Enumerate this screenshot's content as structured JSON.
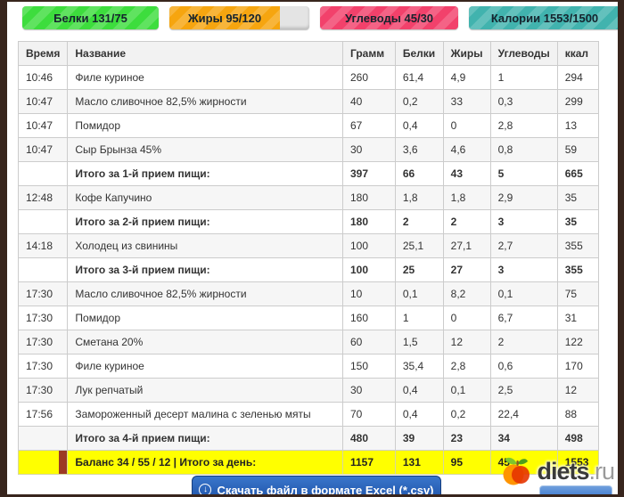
{
  "summary_badges": [
    {
      "name": "proteins",
      "label": "Белки 131/75",
      "color": "#3ddd3d",
      "fill_percent": 100
    },
    {
      "name": "fats",
      "label": "Жиры 95/120",
      "color": "#f6a50f",
      "fill_percent": 79
    },
    {
      "name": "carbs",
      "label": "Углеводы 45/30",
      "color": "#f2416b",
      "fill_percent": 100
    },
    {
      "name": "calories",
      "label": "Калории 1553/1500",
      "color": "#41b3ae",
      "fill_percent": 100
    }
  ],
  "table": {
    "headers": [
      "Время",
      "Название",
      "Грамм",
      "Белки",
      "Жиры",
      "Углеводы",
      "ккал"
    ],
    "rows": [
      {
        "type": "item",
        "time": "10:46",
        "name": "Филе куриное",
        "gram": "260",
        "protein": "61,4",
        "fat": "4,9",
        "carb": "1",
        "kcal": "294"
      },
      {
        "type": "item",
        "time": "10:47",
        "name": "Масло сливочное 82,5% жирности",
        "gram": "40",
        "protein": "0,2",
        "fat": "33",
        "carb": "0,3",
        "kcal": "299"
      },
      {
        "type": "item",
        "time": "10:47",
        "name": "Помидор",
        "gram": "67",
        "protein": "0,4",
        "fat": "0",
        "carb": "2,8",
        "kcal": "13"
      },
      {
        "type": "item",
        "time": "10:47",
        "name": "Сыр Брынза 45%",
        "gram": "30",
        "protein": "3,6",
        "fat": "4,6",
        "carb": "0,8",
        "kcal": "59"
      },
      {
        "type": "subtotal",
        "time": "",
        "name": "Итого за 1-й прием пищи:",
        "gram": "397",
        "protein": "66",
        "fat": "43",
        "carb": "5",
        "kcal": "665"
      },
      {
        "type": "item",
        "time": "12:48",
        "name": "Кофе Капучино",
        "gram": "180",
        "protein": "1,8",
        "fat": "1,8",
        "carb": "2,9",
        "kcal": "35"
      },
      {
        "type": "subtotal",
        "time": "",
        "name": "Итого за 2-й прием пищи:",
        "gram": "180",
        "protein": "2",
        "fat": "2",
        "carb": "3",
        "kcal": "35"
      },
      {
        "type": "item",
        "time": "14:18",
        "name": "Холодец из свинины",
        "gram": "100",
        "protein": "25,1",
        "fat": "27,1",
        "carb": "2,7",
        "kcal": "355"
      },
      {
        "type": "subtotal",
        "time": "",
        "name": "Итого за 3-й прием пищи:",
        "gram": "100",
        "protein": "25",
        "fat": "27",
        "carb": "3",
        "kcal": "355"
      },
      {
        "type": "item",
        "time": "17:30",
        "name": "Масло сливочное 82,5% жирности",
        "gram": "10",
        "protein": "0,1",
        "fat": "8,2",
        "carb": "0,1",
        "kcal": "75"
      },
      {
        "type": "item",
        "time": "17:30",
        "name": "Помидор",
        "gram": "160",
        "protein": "1",
        "fat": "0",
        "carb": "6,7",
        "kcal": "31"
      },
      {
        "type": "item",
        "time": "17:30",
        "name": "Сметана 20%",
        "gram": "60",
        "protein": "1,5",
        "fat": "12",
        "carb": "2",
        "kcal": "122"
      },
      {
        "type": "item",
        "time": "17:30",
        "name": "Филе куриное",
        "gram": "150",
        "protein": "35,4",
        "fat": "2,8",
        "carb": "0,6",
        "kcal": "170"
      },
      {
        "type": "item",
        "time": "17:30",
        "name": "Лук репчатый",
        "gram": "30",
        "protein": "0,4",
        "fat": "0,1",
        "carb": "2,5",
        "kcal": "12"
      },
      {
        "type": "item",
        "time": "17:56",
        "name": "Замороженный десерт малина с зеленью мяты",
        "gram": "70",
        "protein": "0,4",
        "fat": "0,2",
        "carb": "22,4",
        "kcal": "88"
      },
      {
        "type": "subtotal",
        "time": "",
        "name": "Итого за 4-й прием пищи:",
        "gram": "480",
        "protein": "39",
        "fat": "23",
        "carb": "34",
        "kcal": "498"
      }
    ],
    "balance_row": {
      "time": "",
      "name": "Баланс 34 / 55 / 12 | Итого за день:",
      "gram": "1157",
      "protein": "131",
      "fat": "95",
      "carb": "45",
      "kcal": "1553",
      "background": "#ffff00"
    }
  },
  "footer": {
    "download_button_label": "Скачать файл в формате Excel (*.csv)",
    "download_icon": "↓",
    "logo_text": "diets",
    "logo_tld": ".ru"
  },
  "colors": {
    "frame": "#38251d",
    "balance_row_bg": "#ffff00",
    "button_blue": "#1c4fa4",
    "balance_marker": "#9c3a24"
  }
}
